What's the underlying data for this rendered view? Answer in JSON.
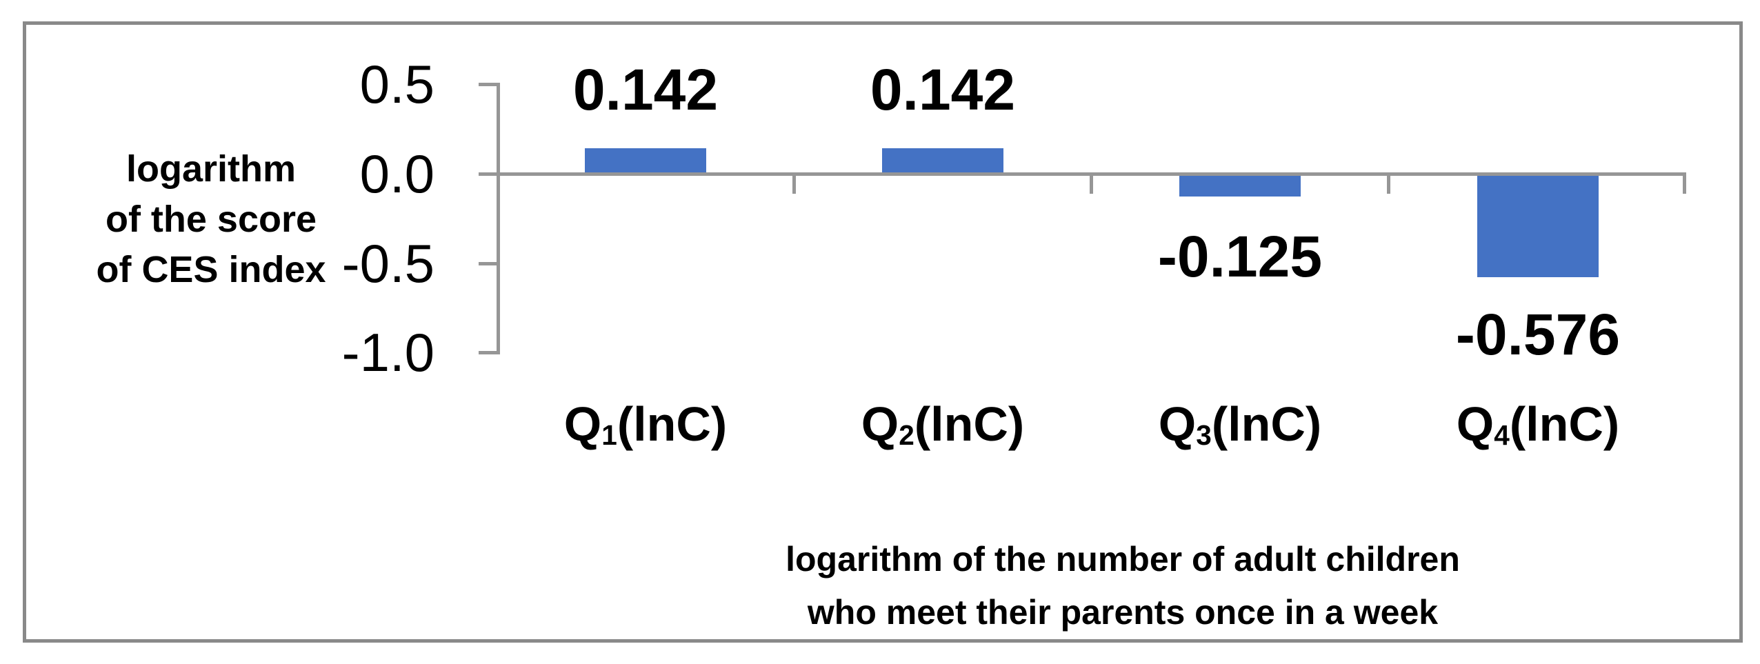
{
  "chart_data": {
    "type": "bar",
    "title": "",
    "categories": [
      "Q1(lnC)",
      "Q2(lnC)",
      "Q3(lnC)",
      "Q4(lnC)"
    ],
    "category_parts": [
      {
        "base": "Q",
        "sub": "1",
        "rest": "(lnC)"
      },
      {
        "base": "Q",
        "sub": "2",
        "rest": "(lnC)"
      },
      {
        "base": "Q",
        "sub": "3",
        "rest": "(lnC)"
      },
      {
        "base": "Q",
        "sub": "4",
        "rest": "(lnC)"
      }
    ],
    "values": [
      0.142,
      0.142,
      -0.125,
      -0.576
    ],
    "data_labels": [
      "0.142",
      "0.142",
      "-0.125",
      "-0.576"
    ],
    "xlabel": "logarithm of the number of adult children who meet their parents once in a week",
    "xlabel_lines": [
      "logarithm of the number of adult children",
      "who meet their parents once in a week"
    ],
    "ylabel": "logarithm of the score of CES index",
    "ylabel_lines": [
      "logarithm",
      "of the score",
      "of CES index"
    ],
    "y_ticks": [
      "0.5",
      "0.0",
      "-0.5",
      "-1.0"
    ],
    "ylim": [
      -1.0,
      0.5
    ],
    "grid": false,
    "legend": "none",
    "colors": {
      "bar": "#4472C4",
      "axis": "#969696",
      "border": "#898989",
      "text": "#000000",
      "background": "#ffffff"
    }
  }
}
